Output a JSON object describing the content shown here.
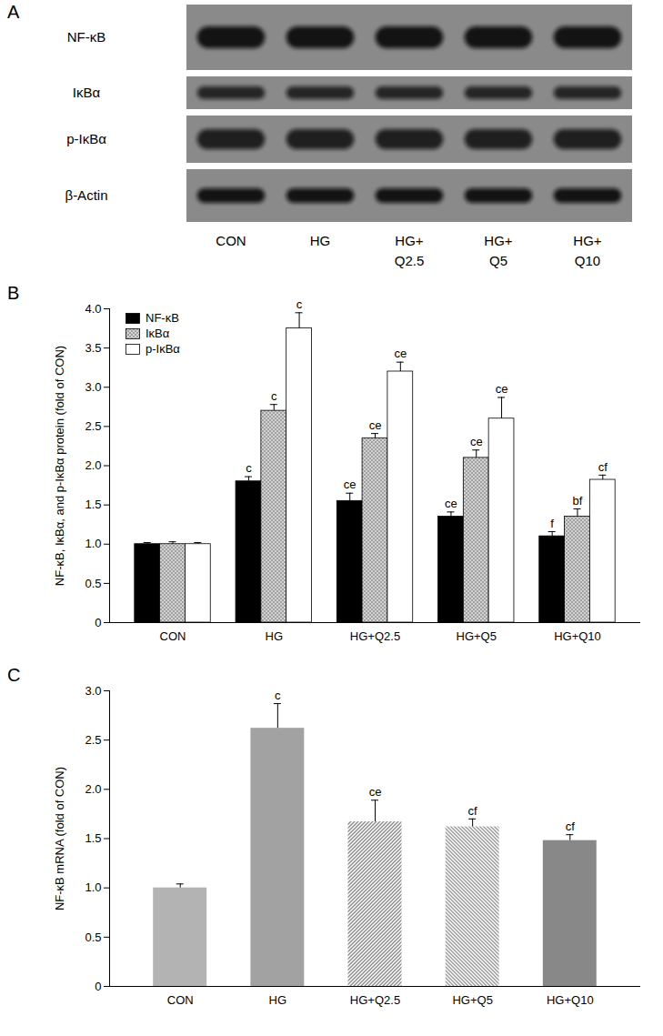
{
  "blot": {
    "panel": "A",
    "rows": [
      "NF-κB",
      "IκBα",
      "p-IκBα",
      "β-Actin"
    ],
    "lanes": [
      [
        "CON"
      ],
      [
        "HG"
      ],
      [
        "HG+",
        "Q2.5"
      ],
      [
        "HG+",
        "Q5"
      ],
      [
        "HG+",
        "Q10"
      ]
    ]
  },
  "chart_data": [
    {
      "type": "bar",
      "panel": "B",
      "categories": [
        "CON",
        "HG",
        "HG+Q2.5",
        "HG+Q5",
        "HG+Q10"
      ],
      "y_label": "NF-κB, IκBα, and p-IκBα protein (fold of CON)",
      "ylim": [
        0,
        4
      ],
      "yticks": [
        0,
        0.5,
        {
          "value": 1,
          "label": "1.0"
        },
        1.5,
        {
          "value": 2,
          "label": "2.0"
        },
        2.5,
        {
          "value": 3,
          "label": "3.0"
        },
        3.5,
        {
          "value": 4,
          "label": "4.0"
        }
      ],
      "legend": "top-left",
      "series": [
        {
          "name": "NF-κB",
          "color": "#000000",
          "values": [
            1.0,
            1.8,
            1.55,
            1.35,
            1.1
          ],
          "errors": [
            0.02,
            0.06,
            0.1,
            0.06,
            0.06
          ],
          "annotations": [
            null,
            "c",
            "ce",
            "ce",
            "f"
          ]
        },
        {
          "name": "IκBα",
          "color": "#d4d4d4",
          "values": [
            1.0,
            2.7,
            2.35,
            2.1,
            1.35
          ],
          "errors": [
            0.03,
            0.08,
            0.06,
            0.1,
            0.1
          ],
          "annotations": [
            null,
            "c",
            "ce",
            "ce",
            "bf"
          ]
        },
        {
          "name": "p-IκBα",
          "color": "#ffffff",
          "values": [
            1.0,
            3.75,
            3.2,
            2.6,
            1.82
          ],
          "errors": [
            0.02,
            0.2,
            0.12,
            0.27,
            0.06
          ],
          "annotations": [
            null,
            "c",
            "ce",
            "ce",
            "cf"
          ]
        }
      ]
    },
    {
      "type": "bar",
      "panel": "C",
      "categories": [
        "CON",
        "HG",
        "HG+Q2.5",
        "HG+Q5",
        "HG+Q10"
      ],
      "y_label": "NF-κB mRNA (fold of CON)",
      "ylim": [
        0,
        3
      ],
      "yticks": [
        0,
        0.5,
        {
          "value": 1,
          "label": "1.0"
        },
        1.5,
        {
          "value": 2,
          "label": "2.0"
        },
        2.5,
        {
          "value": 3,
          "label": "3.0"
        }
      ],
      "values": [
        1.0,
        2.62,
        1.67,
        1.62,
        1.48
      ],
      "errors": [
        0.04,
        0.25,
        0.22,
        0.08,
        0.06
      ],
      "annotations": [
        null,
        "c",
        "ce",
        "cf",
        "cf"
      ],
      "colors": [
        "#9a9a9a",
        "#7a7a7a",
        "#8a8a8a",
        "#9a9a9a",
        "#555555"
      ]
    }
  ]
}
